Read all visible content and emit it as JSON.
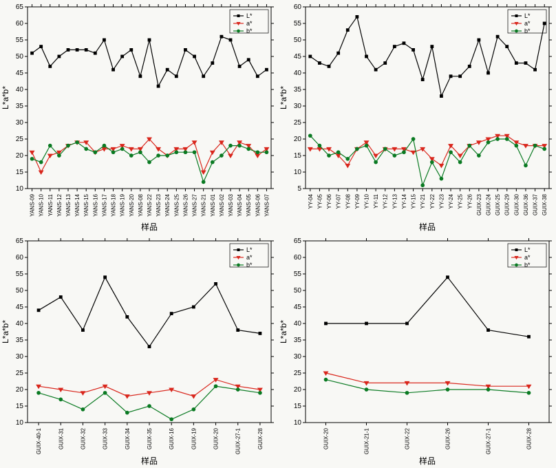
{
  "global": {
    "ylabel": "L*a*b*",
    "xlabel": "样品",
    "legend": {
      "L": "L*",
      "a": "a*",
      "b": "b*"
    },
    "colors": {
      "L": "#000000",
      "a": "#d9261c",
      "b": "#0a7a22"
    },
    "marker": {
      "L": "square",
      "a": "triangle-down",
      "b": "circle"
    },
    "background": "#f8f8f5",
    "panel_bg": "#ffffff",
    "label_fontsize": 12,
    "tick_fontsize_x": 8,
    "tick_fontsize_y": 10,
    "line_width": 1.2,
    "marker_size": 4
  },
  "panels": [
    {
      "id": "p1",
      "ylim": [
        10,
        65
      ],
      "ytick_step": 5,
      "categories": [
        "YANS-09",
        "YANS-10",
        "YANS-11",
        "YANS-12",
        "YANS-13",
        "YANS-14",
        "YANS-15",
        "YANS-16",
        "YANS-17",
        "YANS-18",
        "YANS-19",
        "YANS-20",
        "YANS-08",
        "YANS-22",
        "YANS-23",
        "YANS-24",
        "YANS-25",
        "YANS-26",
        "YANS-27",
        "YANS-21",
        "YANS-01",
        "YANS-02",
        "YANS-03",
        "YANS-04",
        "YANS-05",
        "YANS-06",
        "YANS-07"
      ],
      "series": {
        "L": [
          51,
          53,
          47,
          50,
          52,
          52,
          52,
          51,
          55,
          46,
          50,
          52,
          44,
          55,
          41,
          46,
          44,
          52,
          50,
          44,
          48,
          56,
          55,
          47,
          49,
          44,
          46
        ],
        "a": [
          21,
          15,
          20,
          21,
          23,
          24,
          24,
          21,
          22,
          22,
          23,
          22,
          22,
          25,
          22,
          20,
          22,
          22,
          24,
          15,
          21,
          24,
          20,
          24,
          23,
          20,
          22
        ],
        "b": [
          19,
          18,
          23,
          20,
          23,
          24,
          22,
          21,
          23,
          21,
          22,
          20,
          21,
          18,
          20,
          20,
          21,
          21,
          21,
          12,
          18,
          20,
          23,
          23,
          22,
          21,
          21
        ]
      }
    },
    {
      "id": "p2",
      "ylim": [
        5,
        60
      ],
      "ytick_step": 5,
      "categories": [
        "YY-04",
        "YY-05",
        "YY-06",
        "YY-07",
        "YY-08",
        "YY-09",
        "YY-10",
        "YY-11",
        "YY-12",
        "YY-13",
        "YY-14",
        "YY-15",
        "YY-21",
        "YY-22",
        "YY-23",
        "YY-24",
        "YY-25",
        "YY-26",
        "GUIX-23",
        "GUIX-24",
        "GUIX-25",
        "GUIX-29",
        "GUIX-30",
        "GUIX-36",
        "GUIX-37",
        "GUIX-38"
      ],
      "series": {
        "L": [
          45,
          43,
          42,
          46,
          53,
          57,
          45,
          41,
          43,
          48,
          49,
          47,
          38,
          48,
          33,
          39,
          39,
          42,
          50,
          40,
          51,
          48,
          43,
          43,
          41,
          55
        ],
        "a": [
          17,
          17,
          17,
          15,
          12,
          17,
          19,
          15,
          17,
          17,
          17,
          16,
          17,
          14,
          12,
          18,
          15,
          18,
          19,
          20,
          21,
          21,
          19,
          18,
          18,
          18
        ],
        "b": [
          21,
          18,
          15,
          16,
          14,
          17,
          18,
          13,
          17,
          15,
          16,
          20,
          6,
          13,
          8,
          16,
          13,
          18,
          15,
          19,
          20,
          20,
          18,
          12,
          18,
          17
        ]
      }
    },
    {
      "id": "p3",
      "ylim": [
        10,
        65
      ],
      "ytick_step": 5,
      "categories": [
        "GUIX-40-1",
        "GUIX-31",
        "GUIX-32",
        "GUIX-33",
        "GUIX-34",
        "GUIX-35",
        "GUIX-16",
        "GUIX-19",
        "GUIX-20",
        "GUIX-27-1",
        "GUIX-28"
      ],
      "series": {
        "L": [
          44,
          48,
          38,
          54,
          42,
          33,
          43,
          45,
          52,
          38,
          37
        ],
        "a": [
          21,
          20,
          19,
          21,
          18,
          19,
          20,
          18,
          23,
          21,
          20
        ],
        "b": [
          19,
          17,
          14,
          19,
          13,
          15,
          11,
          14,
          21,
          20,
          19
        ]
      }
    },
    {
      "id": "p4",
      "ylim": [
        10,
        65
      ],
      "ytick_step": 5,
      "categories": [
        "GUIX-20",
        "GUIX-21-1",
        "GUIX-22",
        "GUIX-26",
        "GUIX-27-1",
        "GUIX-28"
      ],
      "series": {
        "L": [
          40,
          40,
          40,
          54,
          38,
          36
        ],
        "a": [
          25,
          22,
          22,
          22,
          21,
          21
        ],
        "b": [
          23,
          20,
          19,
          20,
          20,
          19
        ]
      }
    }
  ]
}
